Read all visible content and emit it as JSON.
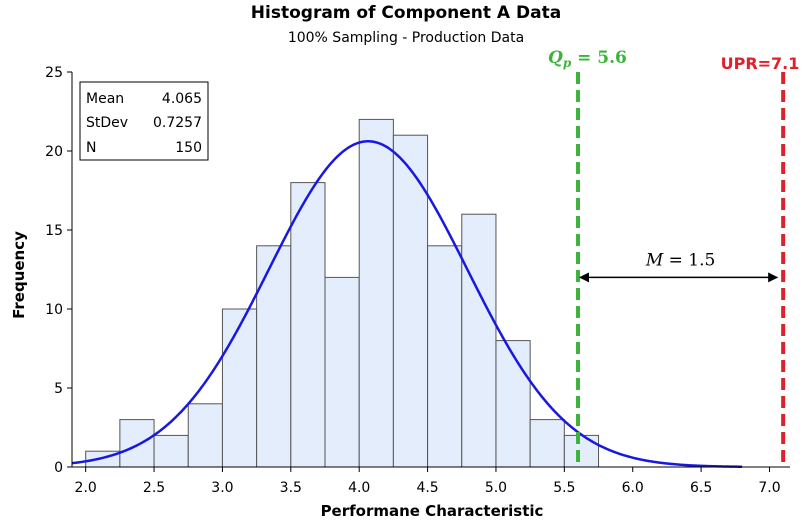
{
  "chart_data": {
    "type": "bar",
    "title": "Histogram of Component A Data",
    "subtitle": "100% Sampling - Production Data",
    "xlabel": "Performane Characteristic",
    "ylabel": "Frequency",
    "xlim": [
      1.9,
      7.15
    ],
    "ylim": [
      0,
      25
    ],
    "x_ticks": [
      "2.0",
      "2.5",
      "3.0",
      "3.5",
      "4.0",
      "4.5",
      "5.0",
      "5.5",
      "6.0",
      "6.5",
      "7.0"
    ],
    "y_ticks": [
      "0",
      "5",
      "10",
      "15",
      "20",
      "25"
    ],
    "bin_width": 0.25,
    "bins": [
      {
        "start": 2.0,
        "count": 1
      },
      {
        "start": 2.25,
        "count": 3
      },
      {
        "start": 2.5,
        "count": 2
      },
      {
        "start": 2.75,
        "count": 4
      },
      {
        "start": 3.0,
        "count": 10
      },
      {
        "start": 3.25,
        "count": 14
      },
      {
        "start": 3.5,
        "count": 18
      },
      {
        "start": 3.75,
        "count": 12
      },
      {
        "start": 4.0,
        "count": 22
      },
      {
        "start": 4.25,
        "count": 21
      },
      {
        "start": 4.5,
        "count": 14
      },
      {
        "start": 4.75,
        "count": 16
      },
      {
        "start": 5.0,
        "count": 8
      },
      {
        "start": 5.25,
        "count": 3
      },
      {
        "start": 5.5,
        "count": 2
      }
    ],
    "normal_fit": {
      "mean": 4.065,
      "stdev": 0.7257,
      "n": 150
    },
    "stats_box": {
      "rows": [
        {
          "label": "Mean",
          "value": "4.065"
        },
        {
          "label": "StDev",
          "value": "0.7257"
        },
        {
          "label": "N",
          "value": "150"
        }
      ],
      "placement": "top-left"
    },
    "reference_lines": [
      {
        "x": 5.6,
        "label_main": "Q",
        "label_sub": "p",
        "label_rest": " = 5.6",
        "color": "#3cb43c",
        "style": "dashed"
      },
      {
        "x": 7.1,
        "label": "UPR=7.1",
        "color": "#e0202a",
        "style": "dashed"
      }
    ],
    "annotation": {
      "text_var": "M",
      "text_rest": " = 1.5",
      "from": 5.6,
      "to": 7.1,
      "y": 12
    },
    "colors": {
      "bar_fill": "#e3edfb",
      "bar_stroke": "#555555",
      "curve": "#1818e0"
    }
  }
}
